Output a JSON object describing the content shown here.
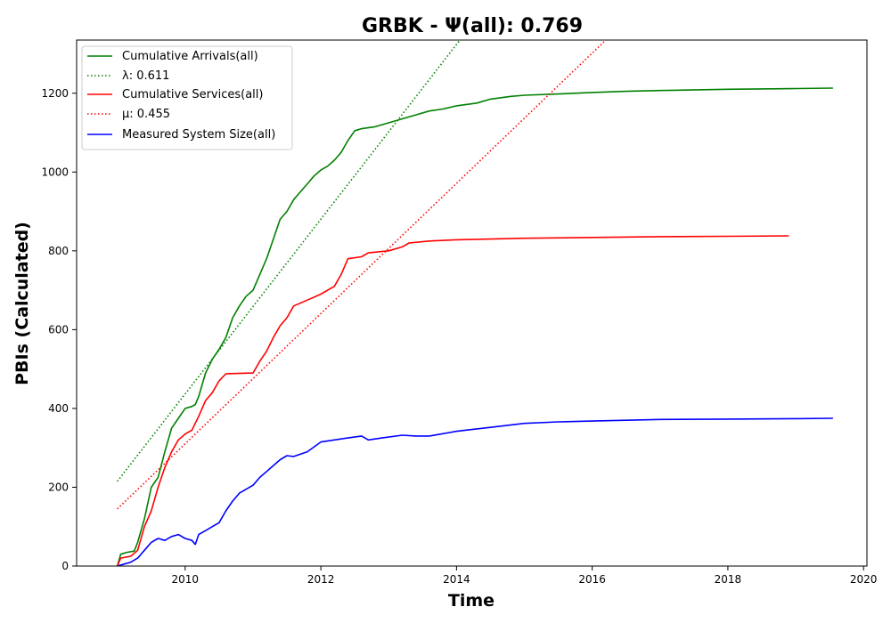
{
  "chart_data": {
    "type": "line",
    "title": "GRBK -  Ψ(all): 0.769",
    "xlabel": "Time",
    "ylabel": "PBIs (Calculated)",
    "xlim": [
      2008.4,
      2020.05
    ],
    "ylim": [
      0,
      1335
    ],
    "x_ticks": [
      2010,
      2012,
      2014,
      2016,
      2018,
      2020
    ],
    "y_ticks": [
      0,
      200,
      400,
      600,
      800,
      1000,
      1200
    ],
    "grid": false,
    "legend_position": "top-left",
    "series": [
      {
        "name": "Cumulative Arrivals(all)",
        "color": "#008000",
        "style": "solid",
        "points": [
          [
            2009.0,
            0
          ],
          [
            2009.05,
            30
          ],
          [
            2009.15,
            35
          ],
          [
            2009.25,
            38
          ],
          [
            2009.3,
            60
          ],
          [
            2009.4,
            120
          ],
          [
            2009.5,
            200
          ],
          [
            2009.6,
            225
          ],
          [
            2009.7,
            290
          ],
          [
            2009.8,
            350
          ],
          [
            2009.9,
            375
          ],
          [
            2010.0,
            400
          ],
          [
            2010.1,
            405
          ],
          [
            2010.15,
            410
          ],
          [
            2010.2,
            430
          ],
          [
            2010.3,
            490
          ],
          [
            2010.4,
            525
          ],
          [
            2010.5,
            550
          ],
          [
            2010.6,
            580
          ],
          [
            2010.7,
            630
          ],
          [
            2010.8,
            660
          ],
          [
            2010.9,
            685
          ],
          [
            2011.0,
            700
          ],
          [
            2011.1,
            740
          ],
          [
            2011.2,
            780
          ],
          [
            2011.3,
            830
          ],
          [
            2011.4,
            880
          ],
          [
            2011.5,
            900
          ],
          [
            2011.6,
            930
          ],
          [
            2011.7,
            950
          ],
          [
            2011.8,
            970
          ],
          [
            2011.9,
            990
          ],
          [
            2012.0,
            1005
          ],
          [
            2012.1,
            1015
          ],
          [
            2012.2,
            1030
          ],
          [
            2012.3,
            1050
          ],
          [
            2012.4,
            1080
          ],
          [
            2012.5,
            1105
          ],
          [
            2012.6,
            1110
          ],
          [
            2012.8,
            1115
          ],
          [
            2013.0,
            1125
          ],
          [
            2013.2,
            1135
          ],
          [
            2013.4,
            1145
          ],
          [
            2013.6,
            1155
          ],
          [
            2013.8,
            1160
          ],
          [
            2014.0,
            1168
          ],
          [
            2014.3,
            1175
          ],
          [
            2014.5,
            1185
          ],
          [
            2014.8,
            1192
          ],
          [
            2015.0,
            1195
          ],
          [
            2015.5,
            1198
          ],
          [
            2016.0,
            1202
          ],
          [
            2016.5,
            1205
          ],
          [
            2017.0,
            1207
          ],
          [
            2018.0,
            1210
          ],
          [
            2019.0,
            1212
          ],
          [
            2019.55,
            1213
          ]
        ]
      },
      {
        "name": "λ: 0.611",
        "color": "#008000",
        "style": "dotted",
        "points": [
          [
            2009.0,
            215
          ],
          [
            2014.05,
            1335
          ]
        ]
      },
      {
        "name": "Cumulative Services(all)",
        "color": "#ff0000",
        "style": "solid",
        "points": [
          [
            2009.0,
            0
          ],
          [
            2009.05,
            20
          ],
          [
            2009.2,
            25
          ],
          [
            2009.3,
            40
          ],
          [
            2009.4,
            100
          ],
          [
            2009.5,
            140
          ],
          [
            2009.6,
            200
          ],
          [
            2009.7,
            250
          ],
          [
            2009.8,
            290
          ],
          [
            2009.9,
            320
          ],
          [
            2010.0,
            335
          ],
          [
            2010.1,
            345
          ],
          [
            2010.2,
            380
          ],
          [
            2010.3,
            420
          ],
          [
            2010.4,
            440
          ],
          [
            2010.5,
            470
          ],
          [
            2010.6,
            488
          ],
          [
            2011.0,
            490
          ],
          [
            2011.1,
            520
          ],
          [
            2011.2,
            545
          ],
          [
            2011.3,
            580
          ],
          [
            2011.4,
            610
          ],
          [
            2011.5,
            630
          ],
          [
            2011.6,
            660
          ],
          [
            2011.8,
            675
          ],
          [
            2012.0,
            690
          ],
          [
            2012.2,
            710
          ],
          [
            2012.3,
            740
          ],
          [
            2012.4,
            780
          ],
          [
            2012.6,
            785
          ],
          [
            2012.7,
            795
          ],
          [
            2013.0,
            800
          ],
          [
            2013.2,
            810
          ],
          [
            2013.3,
            820
          ],
          [
            2013.6,
            825
          ],
          [
            2014.0,
            828
          ],
          [
            2014.5,
            830
          ],
          [
            2015.0,
            832
          ],
          [
            2016.0,
            834
          ],
          [
            2017.0,
            836
          ],
          [
            2018.0,
            837
          ],
          [
            2018.9,
            838
          ]
        ]
      },
      {
        "name": "μ: 0.455",
        "color": "#ff0000",
        "style": "dotted",
        "points": [
          [
            2009.0,
            145
          ],
          [
            2016.2,
            1335
          ]
        ]
      },
      {
        "name": "Measured System Size(all)",
        "color": "#0000ff",
        "style": "solid",
        "points": [
          [
            2009.0,
            0
          ],
          [
            2009.1,
            5
          ],
          [
            2009.2,
            10
          ],
          [
            2009.3,
            20
          ],
          [
            2009.4,
            40
          ],
          [
            2009.5,
            60
          ],
          [
            2009.6,
            70
          ],
          [
            2009.7,
            65
          ],
          [
            2009.8,
            75
          ],
          [
            2009.9,
            80
          ],
          [
            2010.0,
            70
          ],
          [
            2010.1,
            65
          ],
          [
            2010.15,
            55
          ],
          [
            2010.2,
            80
          ],
          [
            2010.3,
            90
          ],
          [
            2010.4,
            100
          ],
          [
            2010.5,
            110
          ],
          [
            2010.6,
            140
          ],
          [
            2010.7,
            165
          ],
          [
            2010.8,
            185
          ],
          [
            2011.0,
            205
          ],
          [
            2011.1,
            225
          ],
          [
            2011.2,
            240
          ],
          [
            2011.3,
            255
          ],
          [
            2011.4,
            270
          ],
          [
            2011.5,
            280
          ],
          [
            2011.6,
            278
          ],
          [
            2011.8,
            290
          ],
          [
            2012.0,
            315
          ],
          [
            2012.2,
            320
          ],
          [
            2012.4,
            325
          ],
          [
            2012.6,
            330
          ],
          [
            2012.7,
            320
          ],
          [
            2012.9,
            325
          ],
          [
            2013.2,
            332
          ],
          [
            2013.4,
            330
          ],
          [
            2013.6,
            330
          ],
          [
            2014.0,
            342
          ],
          [
            2014.5,
            352
          ],
          [
            2015.0,
            362
          ],
          [
            2015.5,
            366
          ],
          [
            2016.0,
            368
          ],
          [
            2016.5,
            370
          ],
          [
            2017.0,
            372
          ],
          [
            2018.0,
            373
          ],
          [
            2019.0,
            374
          ],
          [
            2019.55,
            375
          ]
        ]
      }
    ]
  }
}
